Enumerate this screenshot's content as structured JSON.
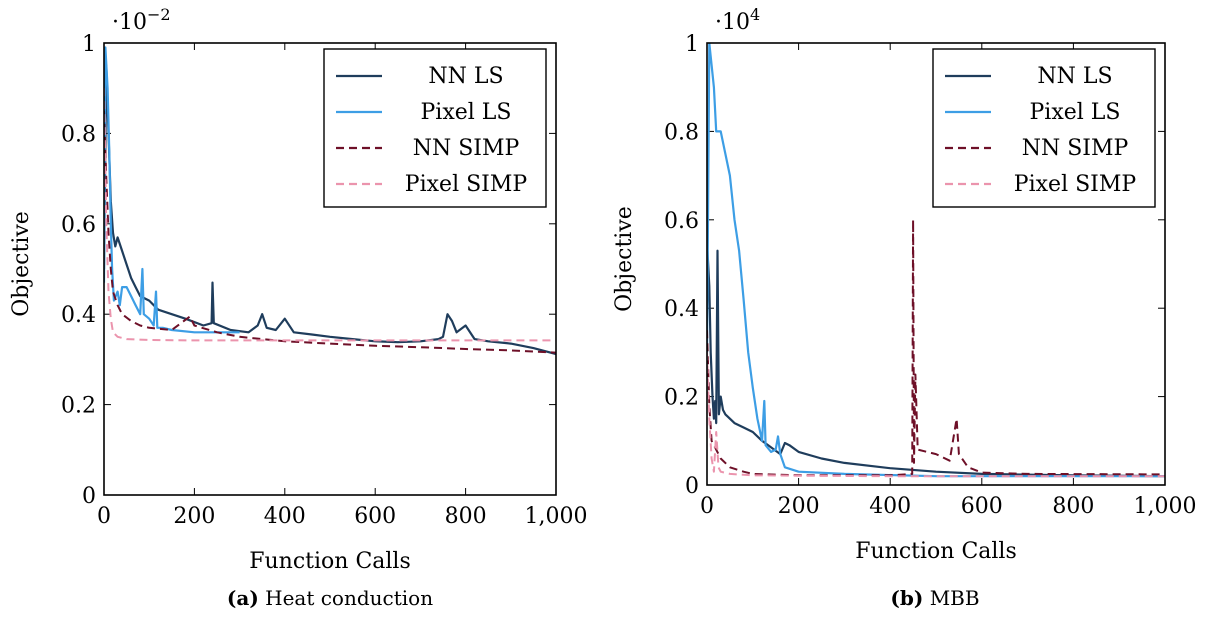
{
  "colors": {
    "nn_ls": "#1f3d5c",
    "pixel_ls": "#3d9ee5",
    "nn_simp": "#6e1028",
    "pixel_simp": "#eb94ad"
  },
  "legend": [
    "NN LS",
    "Pixel LS",
    "NN SIMP",
    "Pixel SIMP"
  ],
  "chart_data": [
    {
      "type": "line",
      "caption_tag": "(a)",
      "caption": "Heat conduction",
      "xlabel": "Function Calls",
      "ylabel": "Objective",
      "multiplier_base": "·10",
      "multiplier_exp": "−2",
      "xlim": [
        0,
        1000
      ],
      "ylim": [
        0,
        1
      ],
      "xticks": [
        0,
        200,
        400,
        600,
        800,
        1000
      ],
      "xtick_labels": [
        "0",
        "200",
        "400",
        "600",
        "800",
        "1,000"
      ],
      "yticks": [
        0,
        0.2,
        0.4,
        0.6,
        0.8,
        1
      ],
      "ytick_labels": [
        "0",
        "0.2",
        "0.4",
        "0.6",
        "0.8",
        "1"
      ],
      "legend_position": "top-right",
      "series": [
        {
          "name": "NN LS",
          "key": "nn_ls",
          "dash": false,
          "points": [
            [
              0,
              0.5
            ],
            [
              5,
              0.95
            ],
            [
              10,
              0.8
            ],
            [
              15,
              0.65
            ],
            [
              20,
              0.58
            ],
            [
              25,
              0.55
            ],
            [
              30,
              0.57
            ],
            [
              40,
              0.54
            ],
            [
              50,
              0.51
            ],
            [
              60,
              0.48
            ],
            [
              70,
              0.46
            ],
            [
              80,
              0.44
            ],
            [
              100,
              0.43
            ],
            [
              120,
              0.41
            ],
            [
              150,
              0.4
            ],
            [
              180,
              0.39
            ],
            [
              220,
              0.375
            ],
            [
              238,
              0.38
            ],
            [
              240,
              0.47
            ],
            [
              243,
              0.38
            ],
            [
              280,
              0.365
            ],
            [
              320,
              0.36
            ],
            [
              340,
              0.375
            ],
            [
              350,
              0.4
            ],
            [
              360,
              0.37
            ],
            [
              380,
              0.365
            ],
            [
              400,
              0.39
            ],
            [
              420,
              0.36
            ],
            [
              460,
              0.355
            ],
            [
              500,
              0.35
            ],
            [
              550,
              0.345
            ],
            [
              600,
              0.34
            ],
            [
              650,
              0.338
            ],
            [
              700,
              0.34
            ],
            [
              740,
              0.345
            ],
            [
              750,
              0.35
            ],
            [
              760,
              0.4
            ],
            [
              770,
              0.385
            ],
            [
              780,
              0.36
            ],
            [
              800,
              0.375
            ],
            [
              820,
              0.345
            ],
            [
              850,
              0.34
            ],
            [
              900,
              0.335
            ],
            [
              950,
              0.325
            ],
            [
              1000,
              0.312
            ]
          ]
        },
        {
          "name": "Pixel LS",
          "key": "pixel_ls",
          "dash": false,
          "points": [
            [
              0,
              0.47
            ],
            [
              3,
              0.99
            ],
            [
              8,
              0.9
            ],
            [
              12,
              0.75
            ],
            [
              15,
              0.6
            ],
            [
              18,
              0.5
            ],
            [
              22,
              0.43
            ],
            [
              30,
              0.45
            ],
            [
              35,
              0.42
            ],
            [
              40,
              0.46
            ],
            [
              50,
              0.46
            ],
            [
              60,
              0.44
            ],
            [
              70,
              0.42
            ],
            [
              80,
              0.4
            ],
            [
              85,
              0.5
            ],
            [
              88,
              0.4
            ],
            [
              100,
              0.39
            ],
            [
              110,
              0.375
            ],
            [
              115,
              0.45
            ],
            [
              118,
              0.37
            ],
            [
              130,
              0.37
            ],
            [
              150,
              0.365
            ],
            [
              200,
              0.36
            ],
            [
              250,
              0.36
            ],
            [
              300,
              0.36
            ]
          ]
        },
        {
          "name": "NN SIMP",
          "key": "nn_simp",
          "dash": true,
          "points": [
            [
              0,
              0.85
            ],
            [
              5,
              0.7
            ],
            [
              10,
              0.58
            ],
            [
              15,
              0.5
            ],
            [
              20,
              0.45
            ],
            [
              30,
              0.42
            ],
            [
              40,
              0.4
            ],
            [
              60,
              0.385
            ],
            [
              80,
              0.375
            ],
            [
              100,
              0.37
            ],
            [
              150,
              0.365
            ],
            [
              190,
              0.395
            ],
            [
              200,
              0.375
            ],
            [
              250,
              0.36
            ],
            [
              300,
              0.35
            ],
            [
              400,
              0.34
            ],
            [
              500,
              0.335
            ],
            [
              600,
              0.33
            ],
            [
              700,
              0.327
            ],
            [
              800,
              0.323
            ],
            [
              900,
              0.32
            ],
            [
              1000,
              0.315
            ]
          ]
        },
        {
          "name": "Pixel SIMP",
          "key": "pixel_simp",
          "dash": true,
          "points": [
            [
              0,
              0.9
            ],
            [
              5,
              0.6
            ],
            [
              10,
              0.45
            ],
            [
              15,
              0.39
            ],
            [
              20,
              0.36
            ],
            [
              30,
              0.35
            ],
            [
              50,
              0.345
            ],
            [
              100,
              0.343
            ],
            [
              200,
              0.342
            ],
            [
              400,
              0.342
            ],
            [
              600,
              0.342
            ],
            [
              800,
              0.342
            ],
            [
              1000,
              0.342
            ]
          ]
        }
      ]
    },
    {
      "type": "line",
      "caption_tag": "(b)",
      "caption": "MBB",
      "xlabel": "Function Calls",
      "ylabel": "Objective",
      "multiplier_base": "·10",
      "multiplier_exp": "4",
      "xlim": [
        0,
        1000
      ],
      "ylim": [
        0,
        1
      ],
      "xticks": [
        0,
        200,
        400,
        600,
        800,
        1000
      ],
      "xtick_labels": [
        "0",
        "200",
        "400",
        "600",
        "800",
        "1,000"
      ],
      "yticks": [
        0,
        0.2,
        0.4,
        0.6,
        0.8,
        1
      ],
      "ytick_labels": [
        "0",
        "0.2",
        "0.4",
        "0.6",
        "0.8",
        "1"
      ],
      "legend_position": "top-right",
      "series": [
        {
          "name": "NN LS",
          "key": "nn_ls",
          "dash": false,
          "points": [
            [
              0,
              0.55
            ],
            [
              5,
              0.45
            ],
            [
              8,
              0.3
            ],
            [
              12,
              0.2
            ],
            [
              15,
              0.15
            ],
            [
              18,
              0.19
            ],
            [
              20,
              0.14
            ],
            [
              23,
              0.53
            ],
            [
              26,
              0.16
            ],
            [
              30,
              0.2
            ],
            [
              35,
              0.17
            ],
            [
              40,
              0.16
            ],
            [
              60,
              0.14
            ],
            [
              80,
              0.13
            ],
            [
              100,
              0.12
            ],
            [
              120,
              0.1
            ],
            [
              140,
              0.085
            ],
            [
              160,
              0.07
            ],
            [
              170,
              0.095
            ],
            [
              180,
              0.09
            ],
            [
              200,
              0.075
            ],
            [
              250,
              0.06
            ],
            [
              300,
              0.05
            ],
            [
              400,
              0.038
            ],
            [
              500,
              0.03
            ],
            [
              600,
              0.025
            ],
            [
              800,
              0.022
            ],
            [
              1000,
              0.02
            ]
          ]
        },
        {
          "name": "Pixel LS",
          "key": "pixel_ls",
          "dash": false,
          "points": [
            [
              0,
              0.3
            ],
            [
              5,
              1.0
            ],
            [
              15,
              0.9
            ],
            [
              20,
              0.8
            ],
            [
              30,
              0.8
            ],
            [
              40,
              0.75
            ],
            [
              50,
              0.7
            ],
            [
              60,
              0.6
            ],
            [
              70,
              0.53
            ],
            [
              80,
              0.42
            ],
            [
              90,
              0.3
            ],
            [
              100,
              0.22
            ],
            [
              110,
              0.15
            ],
            [
              120,
              0.1
            ],
            [
              125,
              0.19
            ],
            [
              128,
              0.09
            ],
            [
              140,
              0.075
            ],
            [
              150,
              0.08
            ],
            [
              155,
              0.11
            ],
            [
              160,
              0.07
            ],
            [
              170,
              0.04
            ],
            [
              200,
              0.03
            ],
            [
              300,
              0.025
            ],
            [
              500,
              0.02
            ],
            [
              1000,
              0.02
            ]
          ]
        },
        {
          "name": "NN SIMP",
          "key": "nn_simp",
          "dash": true,
          "points": [
            [
              0,
              0.35
            ],
            [
              5,
              0.18
            ],
            [
              10,
              0.1
            ],
            [
              20,
              0.08
            ],
            [
              30,
              0.06
            ],
            [
              50,
              0.04
            ],
            [
              80,
              0.03
            ],
            [
              100,
              0.025
            ],
            [
              200,
              0.022
            ],
            [
              400,
              0.022
            ],
            [
              448,
              0.025
            ],
            [
              450,
              0.6
            ],
            [
              452,
              0.05
            ],
            [
              455,
              0.25
            ],
            [
              460,
              0.08
            ],
            [
              500,
              0.07
            ],
            [
              530,
              0.055
            ],
            [
              545,
              0.15
            ],
            [
              550,
              0.07
            ],
            [
              570,
              0.04
            ],
            [
              600,
              0.028
            ],
            [
              700,
              0.025
            ],
            [
              1000,
              0.024
            ]
          ]
        },
        {
          "name": "Pixel SIMP",
          "key": "pixel_simp",
          "dash": true,
          "points": [
            [
              0,
              0.3
            ],
            [
              5,
              0.15
            ],
            [
              10,
              0.06
            ],
            [
              15,
              0.03
            ],
            [
              20,
              0.12
            ],
            [
              25,
              0.04
            ],
            [
              30,
              0.03
            ],
            [
              50,
              0.025
            ],
            [
              100,
              0.022
            ],
            [
              200,
              0.021
            ],
            [
              400,
              0.02
            ],
            [
              600,
              0.02
            ],
            [
              1000,
              0.02
            ]
          ]
        }
      ]
    }
  ]
}
